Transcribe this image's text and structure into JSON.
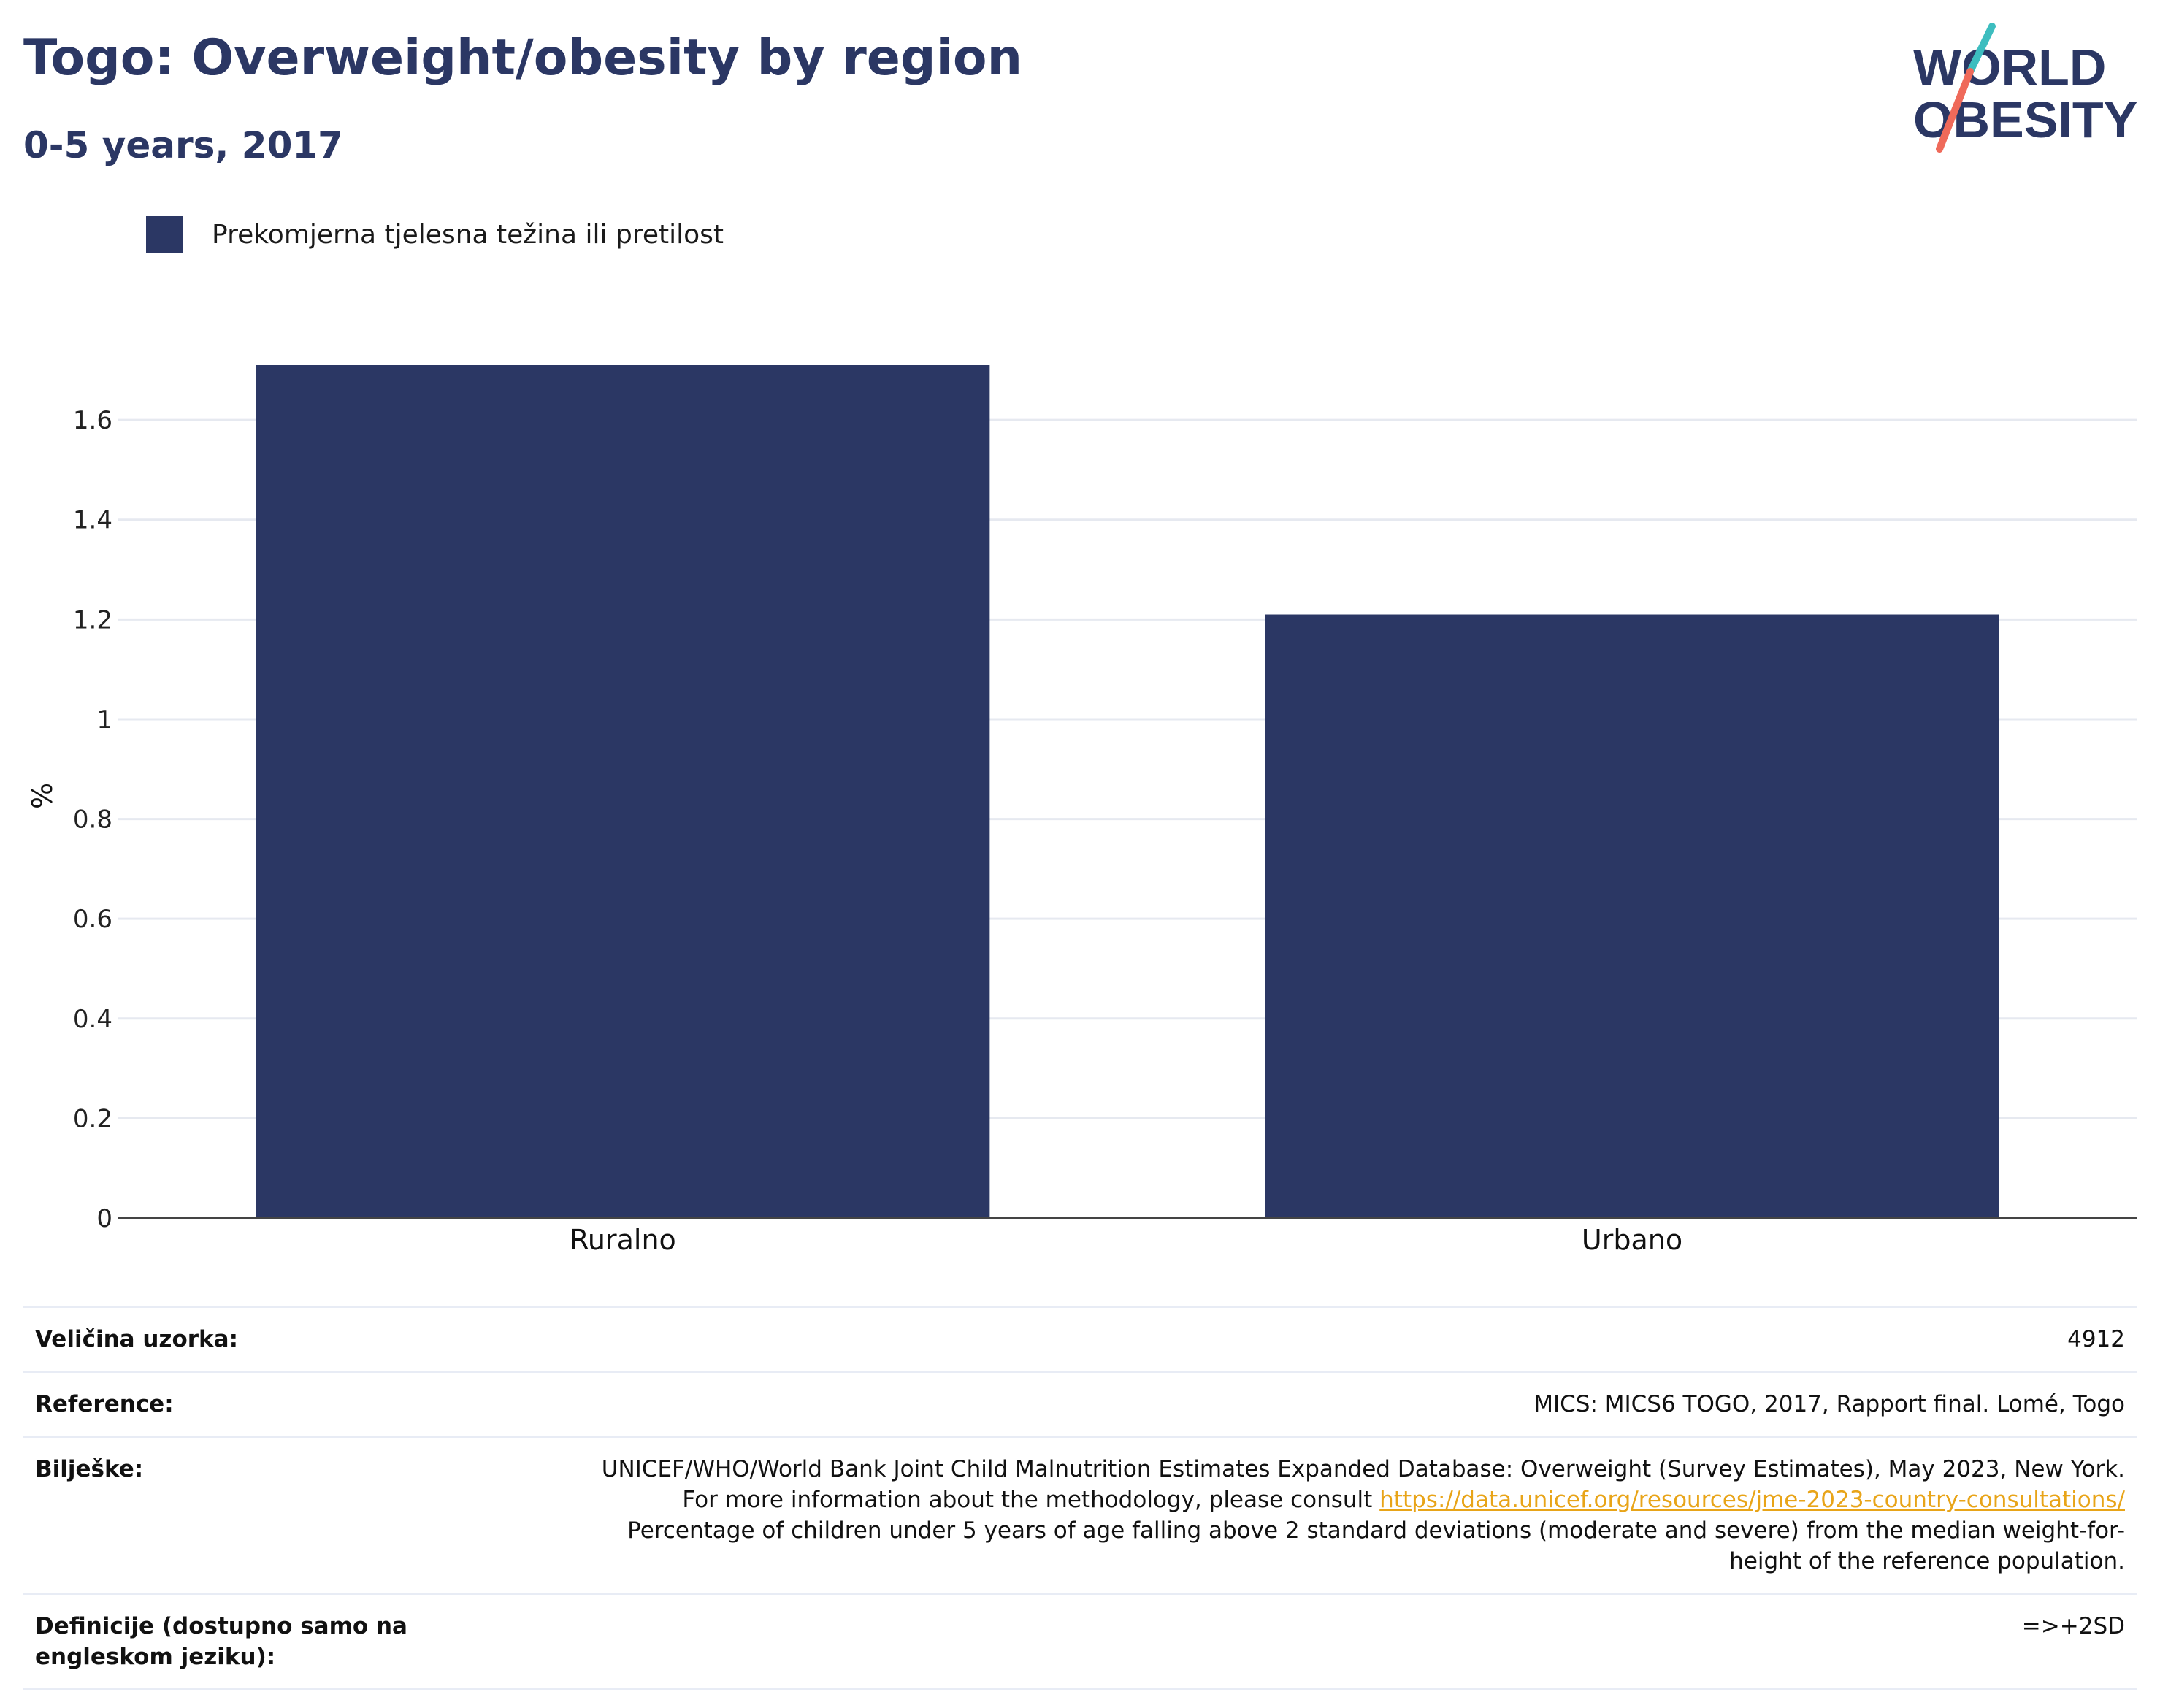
{
  "header": {
    "title": "Togo: Overweight/obesity by region",
    "subtitle": "0-5 years, 2017"
  },
  "logo": {
    "line1": "WORLD",
    "line2": "OBESITY",
    "accent_teal": "#3dbdbf",
    "accent_coral": "#ef6a5a",
    "text_color": "#2b3764"
  },
  "legend": {
    "label": "Prekomjerna tjelesna težina ili pretilost"
  },
  "colors": {
    "bar": "#2b3764",
    "grid": "#e6e9f0",
    "axis": "#444444",
    "link": "#e8a418"
  },
  "chart_data": {
    "type": "bar",
    "title": "Togo: Overweight/obesity by region",
    "subtitle": "0-5 years, 2017",
    "categories": [
      "Ruralno",
      "Urbano"
    ],
    "series": [
      {
        "name": "Prekomjerna tjelesna težina ili pretilost",
        "values": [
          1.71,
          1.21
        ]
      }
    ],
    "ylabel": "%",
    "xlabel": "",
    "ylim": [
      0,
      1.71
    ],
    "yticks": [
      0,
      0.2,
      0.4,
      0.6,
      0.8,
      1,
      1.2,
      1.4,
      1.6
    ],
    "ytick_labels": [
      "0",
      "0.2",
      "0.4",
      "0.6",
      "0.8",
      "1",
      "1.2",
      "1.4",
      "1.6"
    ],
    "grid": true,
    "legend_position": "top-left"
  },
  "meta": {
    "sample_label": "Veličina uzorka:",
    "sample_value": "4912",
    "reference_label": "Reference:",
    "reference_value": "MICS: MICS6 TOGO, 2017, Rapport final. Lomé, Togo",
    "notes_label": "Bilješke:",
    "notes_text1": "UNICEF/WHO/World Bank Joint Child Malnutrition Estimates Expanded Database: Overweight (Survey Estimates), May 2023, New York. For more information about the methodology, please consult ",
    "notes_link": "https://data.unicef.org/resources/jme-2023-country-consultations/",
    "notes_text2": " Percentage of children under 5 years of age falling above 2 standard deviations (moderate and severe) from the median weight-for-height of the reference population.",
    "definitions_label": "Definicije (dostupno samo na engleskom jeziku):",
    "definitions_value": "=>+2SD"
  }
}
